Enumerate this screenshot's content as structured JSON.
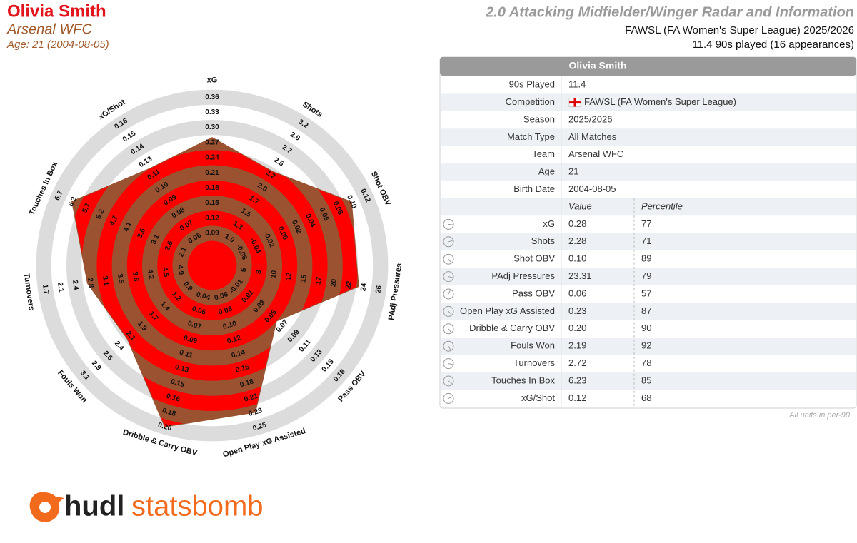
{
  "header": {
    "name": "Olivia Smith",
    "team": "Arsenal WFC",
    "age_line": "Age: 21 (2004-08-05)",
    "title": "2.0 Attacking Midfielder/Winger Radar and Information",
    "competition_line": "FAWSL (FA Women's Super League) 2025/2026",
    "minutes_line": "11.4 90s played (16 appearances)"
  },
  "table": {
    "title": "Olivia Smith",
    "info": [
      [
        "90s Played",
        "11.4"
      ],
      [
        "Competition",
        "FAWSL (FA Women's Super League)"
      ],
      [
        "Season",
        "2025/2026"
      ],
      [
        "Match Type",
        "All Matches"
      ],
      [
        "Team",
        "Arsenal WFC"
      ],
      [
        "Age",
        "21"
      ],
      [
        "Birth Date",
        "2004-08-05"
      ]
    ],
    "columns": [
      "Value",
      "Percentile"
    ],
    "footnote": "All units in per-90"
  },
  "logo": {
    "part1": "hudl",
    "part2": "statsbomb"
  },
  "chart_data": {
    "type": "radar",
    "categories": [
      "xG",
      "Shots",
      "Shot OBV",
      "PAdj Pressures",
      "Pass OBV",
      "Open Play xG Assisted",
      "Dribble & Carry OBV",
      "Fouls Won",
      "Turnovers",
      "Touches In Box",
      "xG/Shot"
    ],
    "values": [
      0.28,
      2.28,
      0.1,
      23.31,
      0.06,
      0.23,
      0.2,
      2.19,
      2.72,
      6.23,
      0.12
    ],
    "value_labels": [
      "0.28",
      "2.28",
      "0.10",
      "23.31",
      "0.06",
      "0.23",
      "0.20",
      "2.19",
      "2.72",
      "6.23",
      "0.12"
    ],
    "percentiles": [
      77,
      71,
      89,
      79,
      57,
      87,
      90,
      92,
      78,
      85,
      68
    ],
    "percentile_colors": [
      "#8b1c12",
      "#b4501a",
      "#8b1c12",
      "#8b1c12",
      "#d9a300",
      "#8b1c12",
      "#8b1c12",
      "#8b1c12",
      "#8b1c12",
      "#8b1c12",
      "#c8820f"
    ],
    "ticks": [
      [
        0.09,
        0.12,
        0.15,
        0.18,
        0.21,
        0.24,
        0.27,
        {
          "value": 0.3,
          "label": "0.30"
        },
        0.33,
        0.36
      ],
      [
        {
          "value": 1,
          "label": "1.0"
        },
        1.3,
        1.5,
        1.7,
        {
          "value": 2,
          "label": "2.0"
        },
        2.2,
        2.5,
        2.7,
        2.9,
        3.2
      ],
      [
        -0.06,
        -0.04,
        -0.02,
        {
          "value": 0,
          "label": "0.00"
        },
        0.02,
        0.04,
        0.06,
        0.08,
        {
          "value": 0.1,
          "label": "0.10"
        },
        0.12
      ],
      [
        5,
        8,
        10,
        12,
        15,
        17,
        20,
        22,
        24,
        26
      ],
      [
        -0.01,
        0.01,
        0.03,
        0.05,
        0.07,
        0.09,
        0.11,
        0.13,
        0.15,
        0.18
      ],
      [
        0.06,
        0.08,
        {
          "value": 0.1,
          "label": "0.10"
        },
        0.12,
        0.14,
        0.16,
        0.18,
        0.21,
        0.23,
        0.25
      ],
      [
        0.04,
        0.06,
        0.07,
        0.09,
        0.11,
        0.13,
        0.15,
        0.16,
        0.18,
        {
          "value": 0.2,
          "label": "0.20"
        }
      ],
      [
        0.9,
        1.2,
        1.4,
        1.7,
        1.9,
        2.1,
        2.4,
        2.6,
        2.9,
        3.1
      ],
      [
        4.9,
        4.5,
        4.2,
        3.8,
        3.5,
        3.1,
        2.8,
        2.4,
        2.1,
        1.7
      ],
      [
        2.1,
        2.6,
        3.1,
        3.6,
        4.1,
        4.7,
        5.2,
        5.7,
        6.2,
        6.7
      ],
      [
        0.06,
        0.07,
        0.08,
        0.09,
        {
          "value": 0.1,
          "label": "0.10"
        },
        0.11,
        0.13,
        0.14,
        0.15,
        0.16
      ]
    ],
    "band_colors": [
      "#ff0000",
      "#9b5230"
    ],
    "grid_colors": [
      "#dcdcdc",
      "#ffffff"
    ]
  }
}
